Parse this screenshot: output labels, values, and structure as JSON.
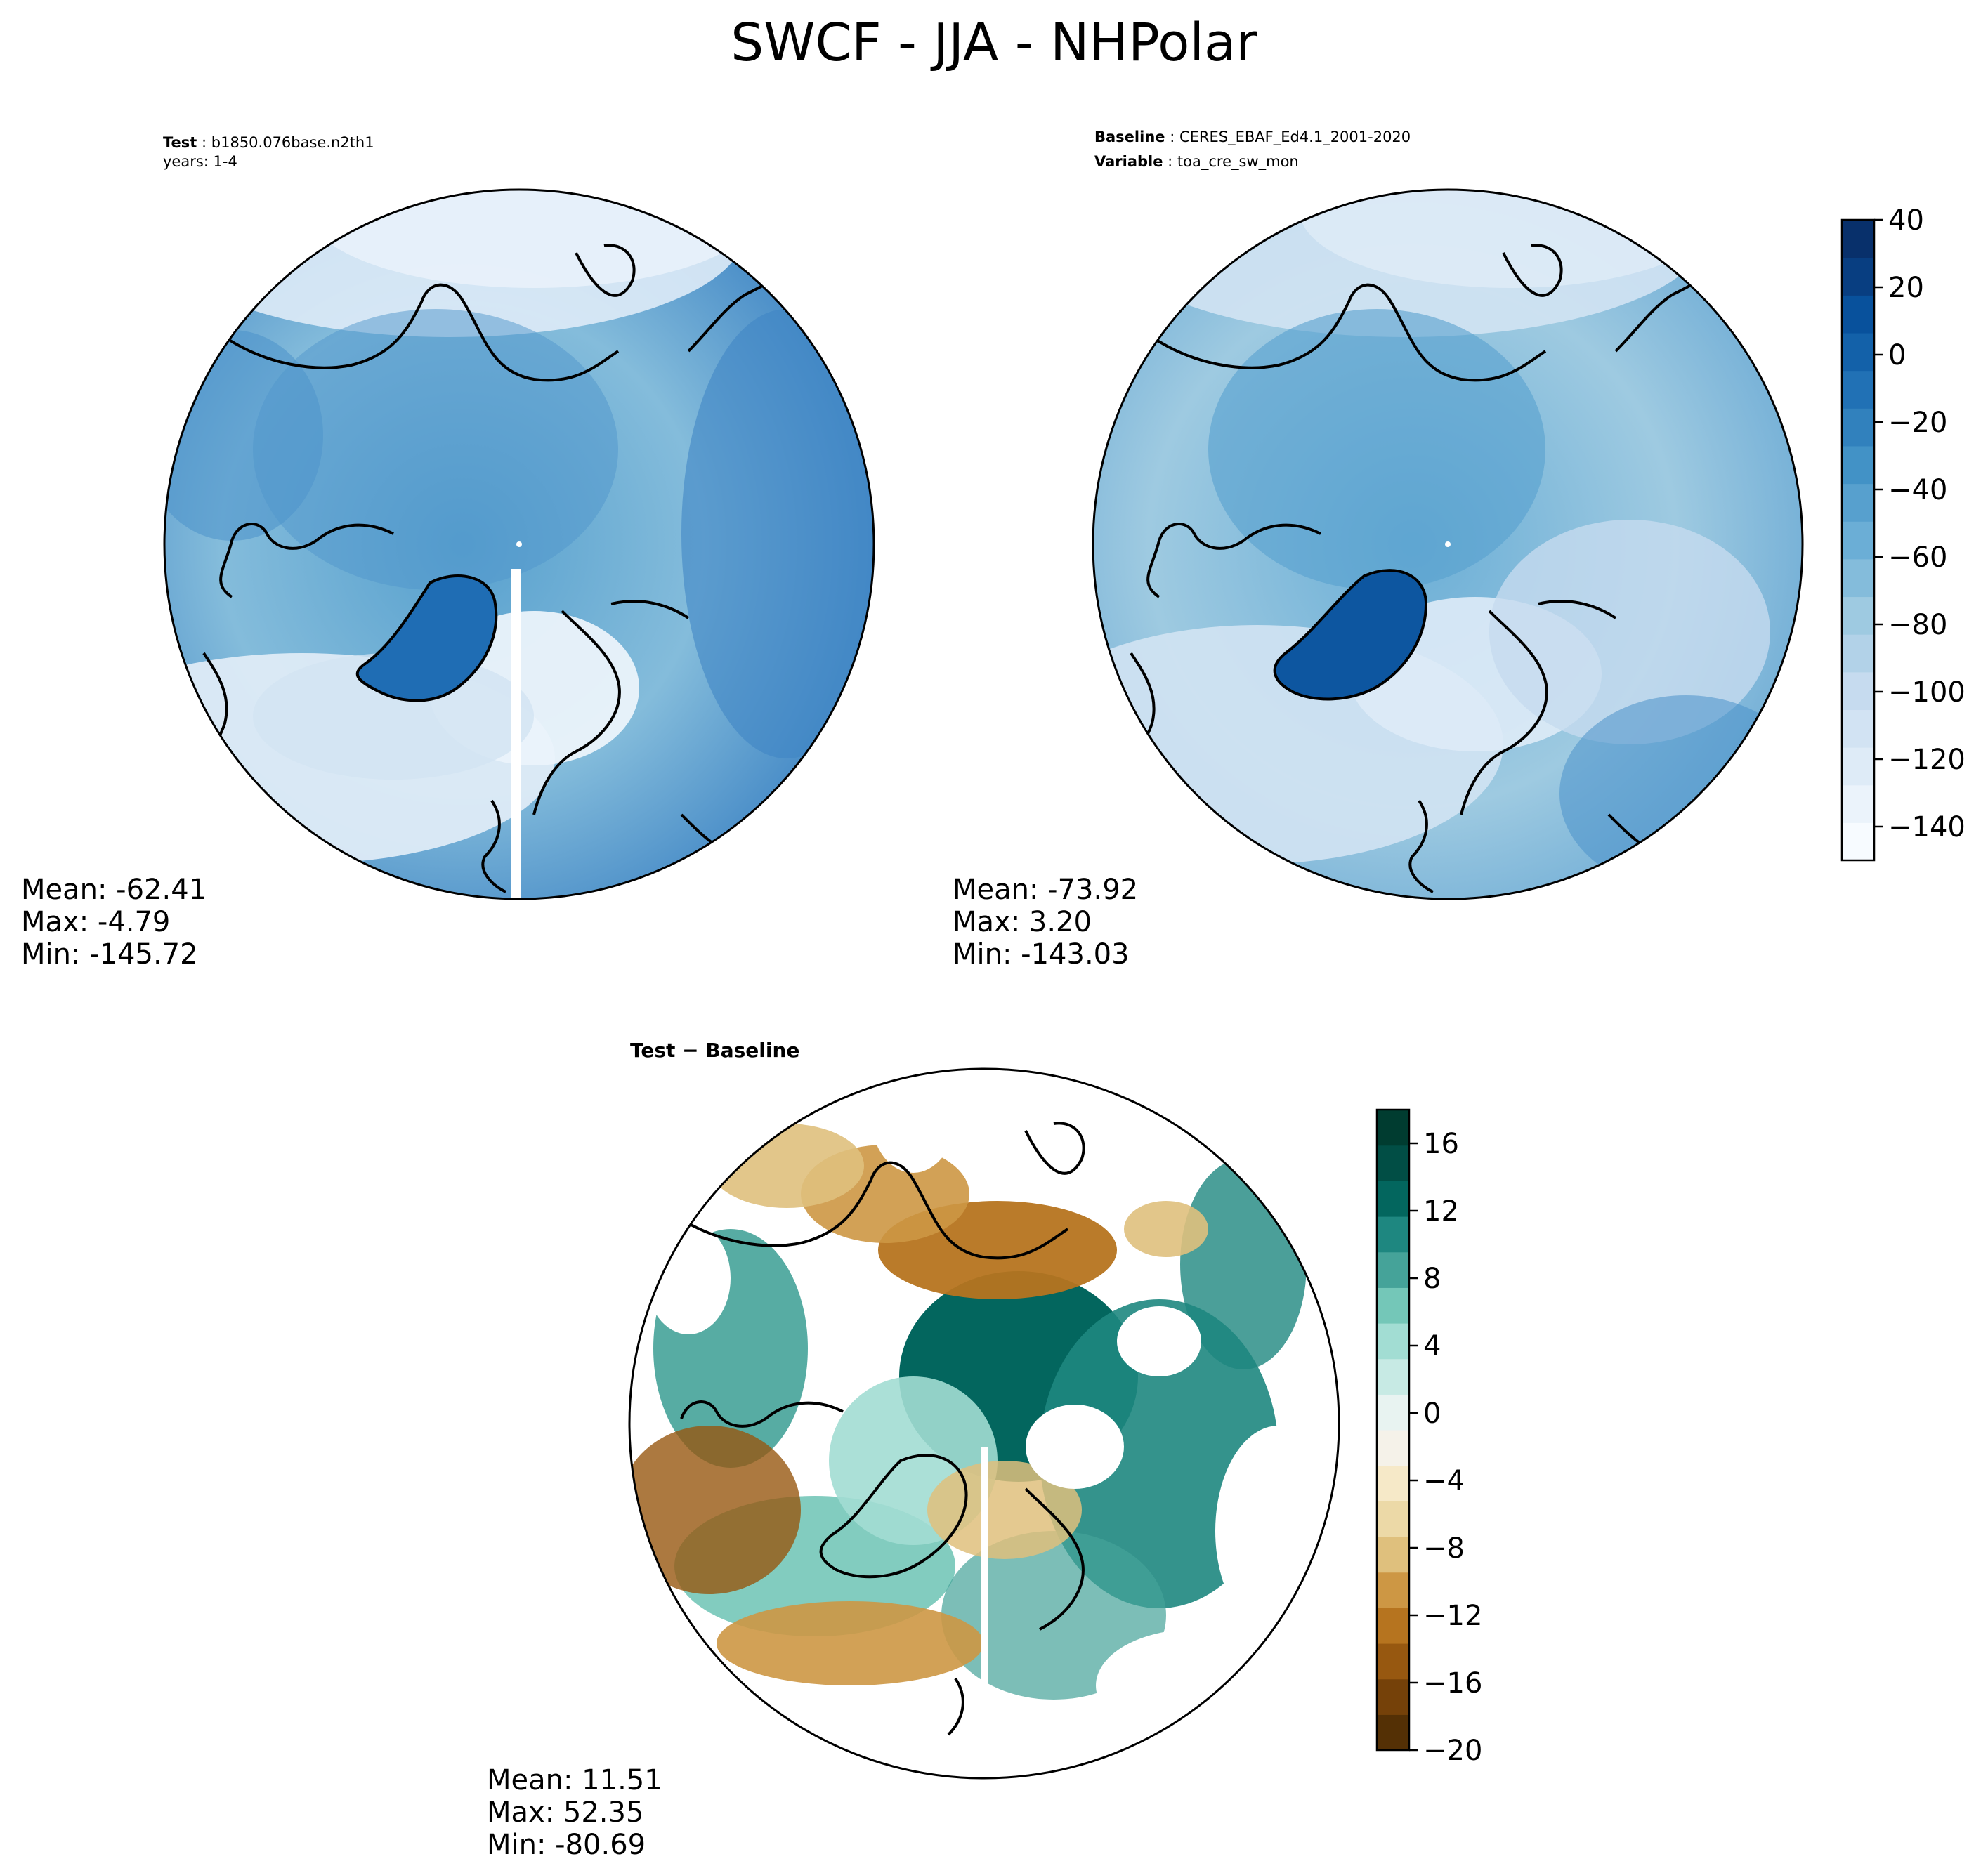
{
  "figure": {
    "title": "SWCF - JJA - NHPolar"
  },
  "panels": [
    {
      "id": "test",
      "header_lines": [
        {
          "label": "Test",
          "text": "b1850.076base.n2th1"
        },
        {
          "label": "",
          "text": "years: 1-4"
        }
      ],
      "stats": {
        "mean": "Mean: -62.41",
        "max": "Max: -4.79",
        "min": "Min: -145.72"
      }
    },
    {
      "id": "baseline",
      "header_lines": [
        {
          "label": "Baseline",
          "text": "CERES_EBAF_Ed4.1_2001-2020"
        },
        {
          "label": "Variable",
          "text": "toa_cre_sw_mon"
        }
      ],
      "stats": {
        "mean": "Mean: -73.92",
        "max": "Max:  3.20",
        "min": "Min: -143.03"
      }
    },
    {
      "id": "diff",
      "header_lines": [
        {
          "label": "Test − Baseline",
          "text": ""
        }
      ],
      "stats": {
        "mean": "Mean: 11.51",
        "max": "Max: 52.35",
        "min": "Min: -80.69"
      }
    }
  ],
  "colorbars": {
    "main": {
      "colormap": "Blues",
      "colors": [
        "#f7fbff",
        "#ebf3fb",
        "#deebf7",
        "#d2e3f3",
        "#c6dbef",
        "#b2d2e8",
        "#9ecae1",
        "#84bcdb",
        "#6baed6",
        "#57a0ce",
        "#4292c6",
        "#3181bd",
        "#2171b5",
        "#1361a9",
        "#08519c",
        "#083e81",
        "#08306b"
      ],
      "min": -150,
      "max": 40,
      "ticks": [
        "40",
        "20",
        "0",
        "−20",
        "−40",
        "−60",
        "−80",
        "−100",
        "−120",
        "−140"
      ],
      "tick_values": [
        40,
        20,
        0,
        -20,
        -40,
        -60,
        -80,
        -100,
        -120,
        -140
      ]
    },
    "diff": {
      "colormap": "BrBG",
      "colors": [
        "#543005",
        "#754109",
        "#975810",
        "#b6741f",
        "#cd9744",
        "#dfc07d",
        "#ecd9a7",
        "#f6e9c8",
        "#f5f2e9",
        "#e8f3f1",
        "#c7eae4",
        "#a2ddd3",
        "#74c7b8",
        "#45a399",
        "#1e8780",
        "#03665e",
        "#014e45",
        "#003c30"
      ],
      "min": -20,
      "max": 18,
      "ticks": [
        "16",
        "12",
        "8",
        "4",
        "0",
        "−4",
        "−8",
        "−12",
        "−16",
        "−20"
      ],
      "tick_values": [
        16,
        12,
        8,
        4,
        0,
        -4,
        -8,
        -12,
        -16,
        -20
      ]
    }
  }
}
